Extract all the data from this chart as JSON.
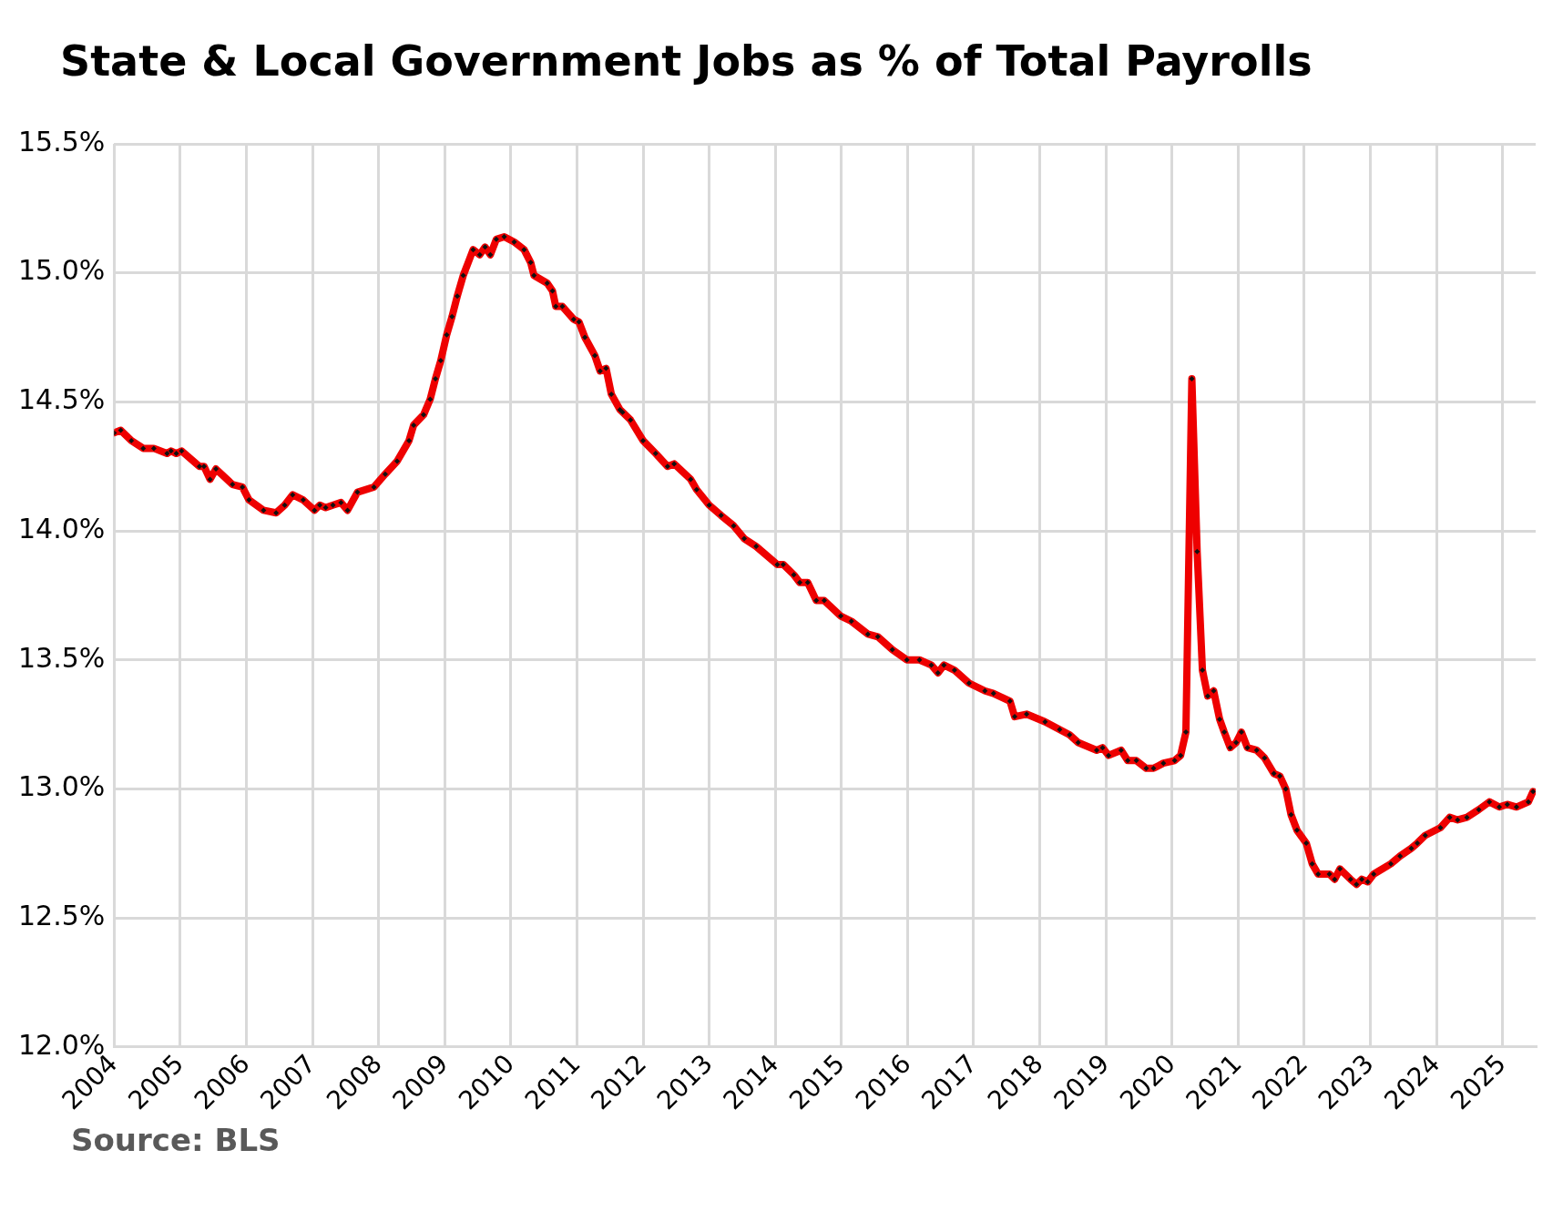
{
  "chart_data": {
    "type": "line",
    "title": "State & Local Government Jobs as % of Total Payrolls",
    "annotations": [
      "Source: BLS"
    ],
    "xlim": [
      2004,
      2025.5
    ],
    "xticks": [
      2004,
      2005,
      2006,
      2007,
      2008,
      2009,
      2010,
      2011,
      2012,
      2013,
      2014,
      2015,
      2016,
      2017,
      2018,
      2019,
      2020,
      2021,
      2022,
      2023,
      2024,
      2025
    ],
    "ylim": [
      12,
      15.5
    ],
    "yticks": [
      {
        "value": 12,
        "label": "12.0%"
      },
      {
        "value": 12.5,
        "label": "12.5%"
      },
      {
        "value": 13,
        "label": "13.0%"
      },
      {
        "value": 13.5,
        "label": "13.5%"
      },
      {
        "value": 14,
        "label": "14.0%"
      },
      {
        "value": 14.5,
        "label": "14.5%"
      },
      {
        "value": 15,
        "label": "15.0%"
      },
      {
        "value": 15.5,
        "label": "15.5%"
      }
    ],
    "grid": true,
    "marker": "diamond",
    "line_style": "solid",
    "series": [
      {
        "color": "#ee0000",
        "x": [
          2004.0,
          2004.1,
          2004.26,
          2004.44,
          2004.6,
          2004.8,
          2004.86,
          2004.94,
          2005.02,
          2005.29,
          2005.36,
          2005.45,
          2005.54,
          2005.79,
          2005.94,
          2006.04,
          2006.26,
          2006.45,
          2006.58,
          2006.7,
          2006.86,
          2007.03,
          2007.11,
          2007.2,
          2007.31,
          2007.43,
          2007.53,
          2007.68,
          2007.93,
          2008.1,
          2008.28,
          2008.46,
          2008.53,
          2008.68,
          2008.78,
          2008.86,
          2008.94,
          2009.03,
          2009.11,
          2009.19,
          2009.28,
          2009.43,
          2009.53,
          2009.61,
          2009.69,
          2009.78,
          2009.9,
          2010.05,
          2010.2,
          2010.3,
          2010.35,
          2010.55,
          2010.63,
          2010.68,
          2010.78,
          2010.95,
          2011.03,
          2011.12,
          2011.27,
          2011.35,
          2011.44,
          2011.52,
          2011.65,
          2011.69,
          2011.81,
          2012.0,
          2012.19,
          2012.37,
          2012.47,
          2012.72,
          2012.81,
          2013.0,
          2013.18,
          2013.37,
          2013.53,
          2013.71,
          2014.03,
          2014.12,
          2014.28,
          2014.37,
          2014.49,
          2014.62,
          2014.74,
          2014.99,
          2015.15,
          2015.4,
          2015.55,
          2015.77,
          2015.99,
          2016.18,
          2016.36,
          2016.46,
          2016.55,
          2016.71,
          2016.93,
          2017.17,
          2017.3,
          2017.55,
          2017.62,
          2017.8,
          2018.08,
          2018.3,
          2018.45,
          2018.58,
          2018.86,
          2018.95,
          2019.04,
          2019.23,
          2019.33,
          2019.46,
          2019.61,
          2019.72,
          2019.87,
          2020.04,
          2020.13,
          2020.21,
          2020.3,
          2020.38,
          2020.46,
          2020.54,
          2020.63,
          2020.72,
          2020.79,
          2020.88,
          2020.97,
          2021.05,
          2021.14,
          2021.28,
          2021.4,
          2021.54,
          2021.63,
          2021.72,
          2021.8,
          2021.89,
          2022.03,
          2022.12,
          2022.21,
          2022.38,
          2022.46,
          2022.54,
          2022.7,
          2022.79,
          2022.87,
          2022.96,
          2023.05,
          2023.31,
          2023.45,
          2023.62,
          2023.71,
          2023.83,
          2024.06,
          2024.2,
          2024.32,
          2024.46,
          2024.64,
          2024.8,
          2024.95,
          2025.07,
          2025.21,
          2025.39,
          2025.46
        ],
        "values": [
          14.38,
          14.39,
          14.35,
          14.32,
          14.32,
          14.3,
          14.31,
          14.3,
          14.31,
          14.25,
          14.25,
          14.2,
          14.24,
          14.18,
          14.17,
          14.12,
          14.08,
          14.07,
          14.1,
          14.14,
          14.12,
          14.08,
          14.1,
          14.09,
          14.1,
          14.11,
          14.08,
          14.15,
          14.17,
          14.22,
          14.27,
          14.35,
          14.41,
          14.45,
          14.51,
          14.59,
          14.66,
          14.76,
          14.83,
          14.91,
          14.99,
          15.09,
          15.07,
          15.1,
          15.07,
          15.13,
          15.14,
          15.12,
          15.09,
          15.04,
          14.99,
          14.96,
          14.93,
          14.87,
          14.87,
          14.82,
          14.81,
          14.75,
          14.68,
          14.62,
          14.63,
          14.53,
          14.47,
          14.46,
          14.43,
          14.35,
          14.3,
          14.25,
          14.26,
          14.2,
          14.16,
          14.1,
          14.06,
          14.02,
          13.97,
          13.94,
          13.87,
          13.87,
          13.83,
          13.8,
          13.8,
          13.73,
          13.73,
          13.67,
          13.65,
          13.6,
          13.59,
          13.54,
          13.5,
          13.5,
          13.48,
          13.45,
          13.48,
          13.46,
          13.41,
          13.38,
          13.37,
          13.34,
          13.28,
          13.29,
          13.26,
          13.23,
          13.21,
          13.18,
          13.15,
          13.16,
          13.13,
          13.15,
          13.11,
          13.11,
          13.08,
          13.08,
          13.1,
          13.11,
          13.13,
          13.22,
          14.59,
          13.92,
          13.46,
          13.36,
          13.38,
          13.27,
          13.22,
          13.16,
          13.18,
          13.22,
          13.16,
          13.15,
          13.12,
          13.06,
          13.05,
          13.0,
          12.9,
          12.84,
          12.79,
          12.71,
          12.67,
          12.67,
          12.65,
          12.69,
          12.65,
          12.63,
          12.65,
          12.64,
          12.67,
          12.71,
          12.74,
          12.77,
          12.79,
          12.82,
          12.85,
          12.89,
          12.88,
          12.89,
          12.92,
          12.95,
          12.93,
          12.94,
          12.93,
          12.95,
          12.99
        ]
      }
    ]
  }
}
